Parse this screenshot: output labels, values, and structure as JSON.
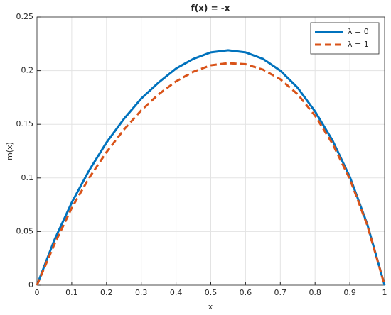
{
  "chart_data": {
    "type": "line",
    "title": "f(x) = -x",
    "x_label": "x",
    "y_label": "m(x)",
    "x": [
      0,
      0.05,
      0.1,
      0.15,
      0.2,
      0.25,
      0.3,
      0.35,
      0.4,
      0.45,
      0.5,
      0.55,
      0.6,
      0.65,
      0.7,
      0.75,
      0.8,
      0.85,
      0.9,
      0.95,
      1
    ],
    "series": [
      {
        "name": "λ = 0",
        "color": "#0072bd",
        "dashed": false,
        "values": [
          0,
          0.042,
          0.077,
          0.107,
          0.133,
          0.155,
          0.174,
          0.189,
          0.202,
          0.211,
          0.217,
          0.219,
          0.217,
          0.211,
          0.2,
          0.184,
          0.162,
          0.135,
          0.101,
          0.057,
          0
        ]
      },
      {
        "name": "λ = 1",
        "color": "#d95319",
        "dashed": true,
        "values": [
          0,
          0.038,
          0.072,
          0.1,
          0.124,
          0.145,
          0.163,
          0.178,
          0.19,
          0.199,
          0.205,
          0.207,
          0.206,
          0.201,
          0.192,
          0.178,
          0.158,
          0.132,
          0.099,
          0.056,
          0
        ]
      }
    ],
    "xlim": [
      0,
      1
    ],
    "xticks": [
      0,
      0.1,
      0.2,
      0.3,
      0.4,
      0.5,
      0.6,
      0.7,
      0.8,
      0.9,
      1
    ],
    "ylim": [
      0,
      0.25
    ],
    "yticks": [
      0,
      0.05,
      0.1,
      0.15,
      0.2,
      0.25
    ],
    "grid": true,
    "legend_position": "northeast"
  }
}
